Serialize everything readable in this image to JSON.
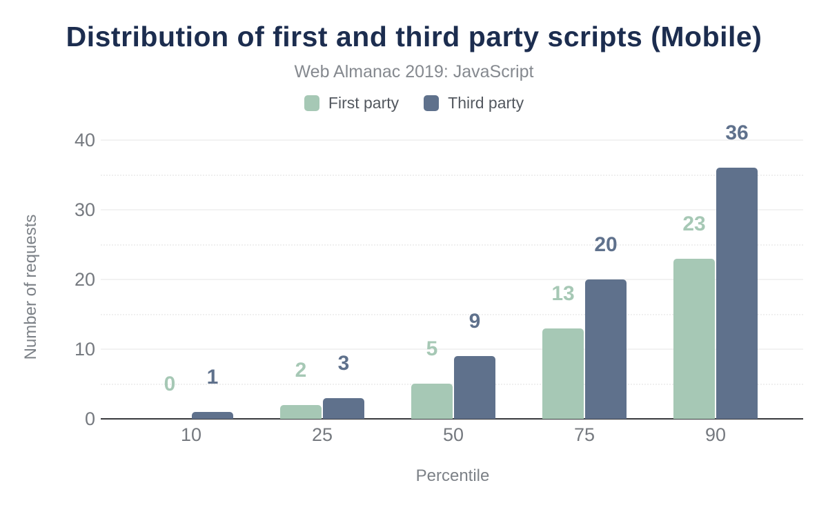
{
  "chart_data": {
    "type": "bar",
    "title": "Distribution of first and third party scripts (Mobile)",
    "subtitle": "Web Almanac 2019: JavaScript",
    "categories": [
      "10",
      "25",
      "50",
      "75",
      "90"
    ],
    "series": [
      {
        "name": "First party",
        "color": "#a6c8b5",
        "values": [
          0,
          2,
          5,
          13,
          23
        ]
      },
      {
        "name": "Third party",
        "color": "#5f718c",
        "values": [
          1,
          3,
          9,
          20,
          36
        ]
      }
    ],
    "data_labels_shown": true,
    "xlabel": "Percentile",
    "ylabel": "Number of requests",
    "ylim": [
      0,
      40
    ],
    "yticks": [
      0,
      10,
      20,
      30,
      40
    ],
    "minor_yticks": [
      5,
      15,
      25,
      35
    ],
    "grid": "horizontal, solid major lines with dotted minor lines",
    "legend_position": "top center",
    "colors": {
      "title_text": "#1c2d4f",
      "subtitle_text": "#85898f",
      "legend_text": "#53585f",
      "tick_text": "#75797f",
      "axis_title_text": "#7c8187",
      "axis_line": "#37393c",
      "grid_major": "#f2f2f2",
      "grid_minor": "#efefef",
      "background": "#ffffff"
    }
  }
}
